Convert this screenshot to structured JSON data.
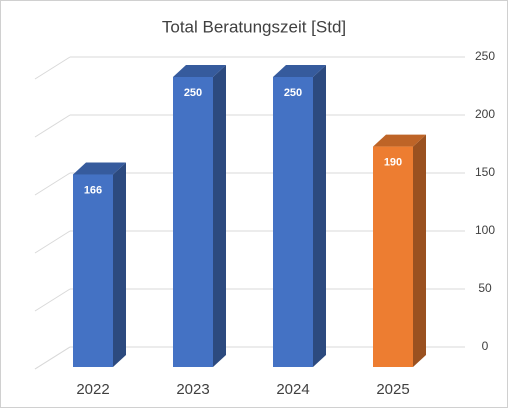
{
  "chart_data": {
    "type": "bar3d",
    "title": "Total Beratungszeit [Std]",
    "categories": [
      "2022",
      "2023",
      "2024",
      "2025"
    ],
    "values": [
      166,
      250,
      250,
      190
    ],
    "colors": [
      "#4472c4",
      "#4472c4",
      "#4472c4",
      "#ed7d31"
    ],
    "ylim": [
      0,
      250
    ],
    "yticks": [
      0,
      50,
      100,
      150,
      200,
      250
    ],
    "grid": true,
    "axis_side": "right"
  }
}
